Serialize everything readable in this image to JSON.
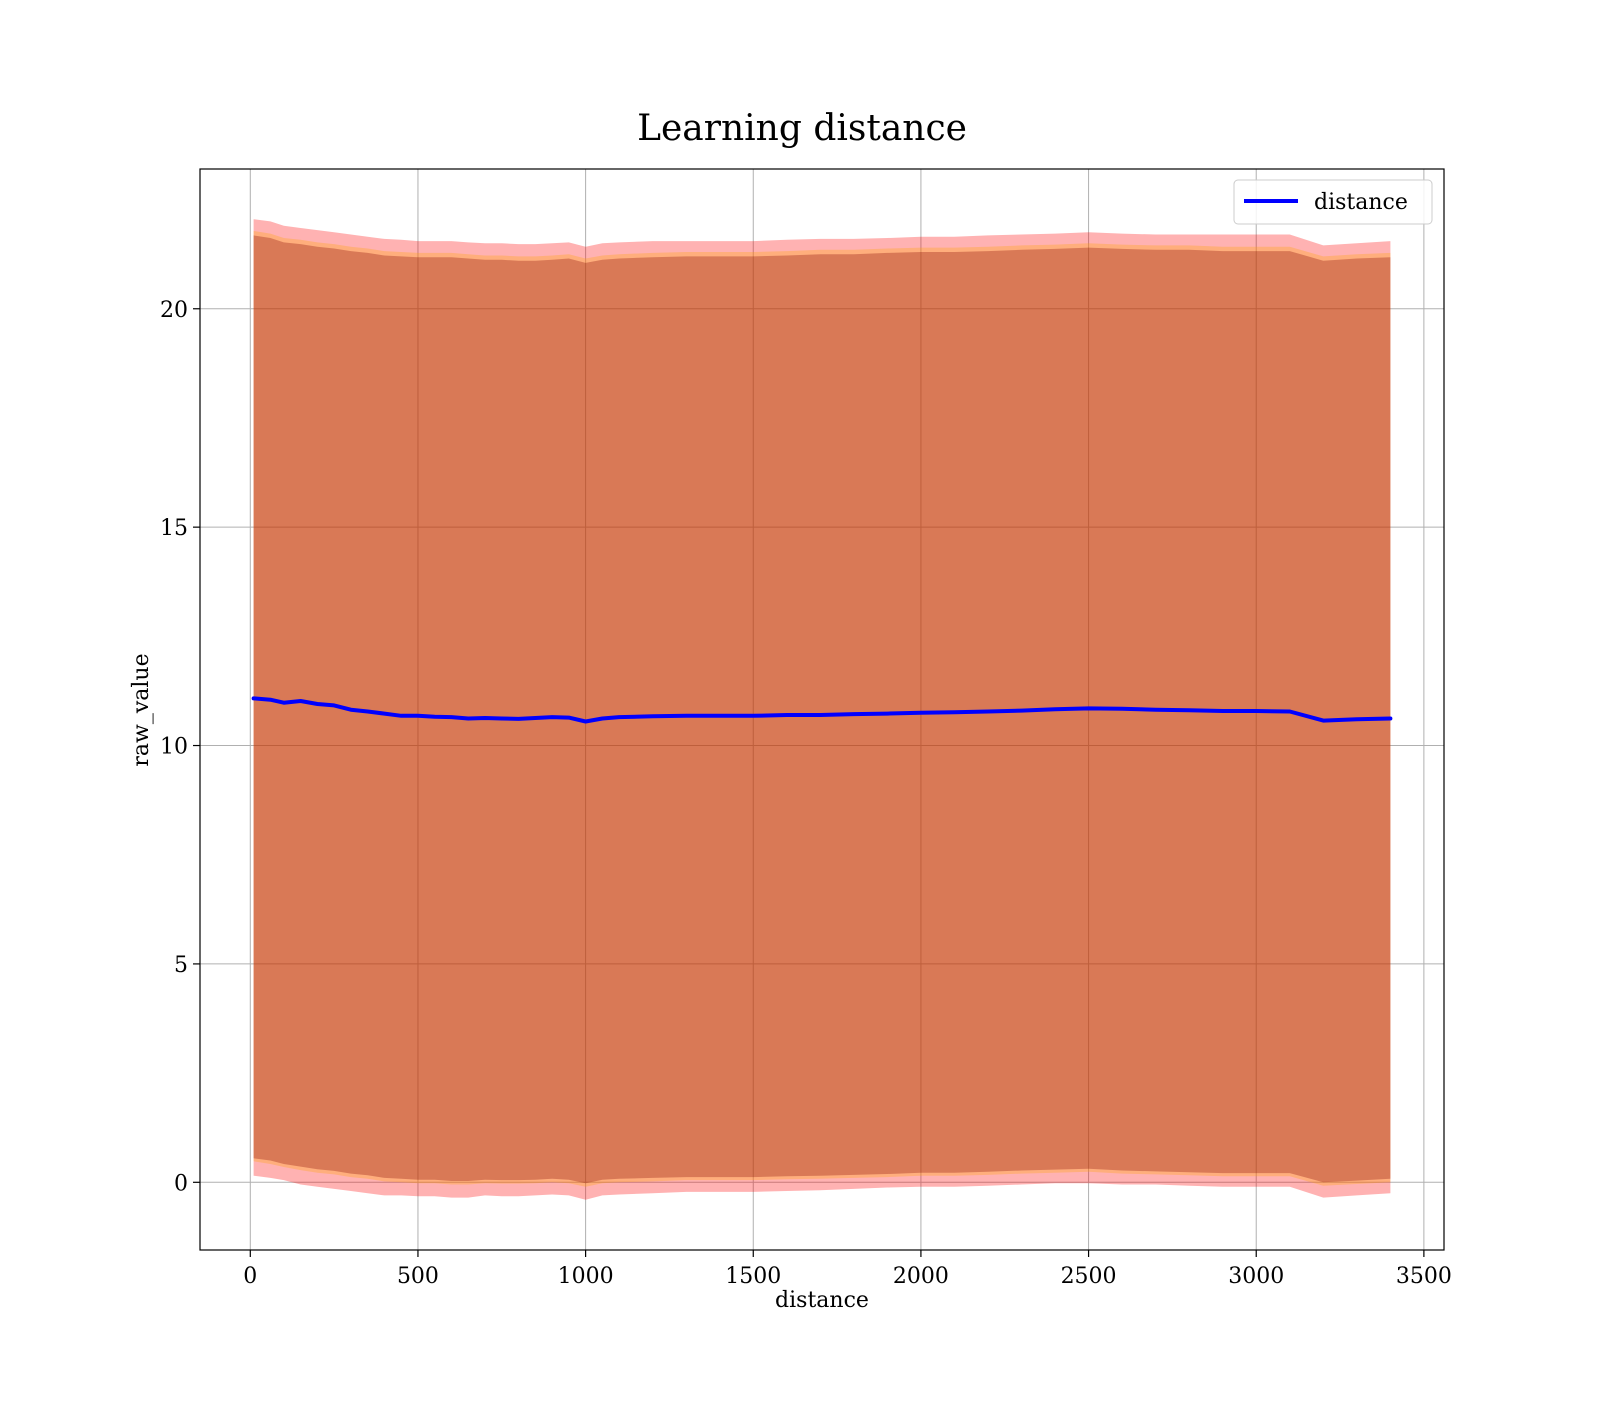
{
  "chart_data": {
    "type": "line",
    "title": "Learning distance",
    "xlabel": "distance",
    "ylabel": "raw_value",
    "xlim": [
      -150,
      3560
    ],
    "ylim": [
      -1.55,
      23.2
    ],
    "x_ticks": [
      0,
      500,
      1000,
      1500,
      2000,
      2500,
      3000,
      3500
    ],
    "y_ticks": [
      0,
      5,
      10,
      15,
      20
    ],
    "grid": true,
    "legend_position": "top-right",
    "series": [
      {
        "name": "distance",
        "color": "#0000ff",
        "x": [
          10,
          60,
          100,
          150,
          200,
          250,
          300,
          350,
          400,
          450,
          500,
          550,
          600,
          650,
          700,
          750,
          800,
          850,
          900,
          950,
          1000,
          1050,
          1100,
          1200,
          1300,
          1400,
          1500,
          1600,
          1700,
          1800,
          1900,
          2000,
          2100,
          2200,
          2300,
          2400,
          2500,
          2600,
          2700,
          2800,
          2900,
          3000,
          3100,
          3200,
          3300,
          3400
        ],
        "y": [
          11.08,
          11.05,
          10.98,
          11.02,
          10.95,
          10.92,
          10.82,
          10.78,
          10.73,
          10.68,
          10.68,
          10.66,
          10.65,
          10.62,
          10.63,
          10.62,
          10.61,
          10.63,
          10.65,
          10.64,
          10.55,
          10.62,
          10.65,
          10.67,
          10.68,
          10.68,
          10.68,
          10.7,
          10.7,
          10.72,
          10.73,
          10.75,
          10.76,
          10.78,
          10.8,
          10.83,
          10.85,
          10.84,
          10.82,
          10.81,
          10.79,
          10.79,
          10.78,
          10.57,
          10.6,
          10.62
        ]
      }
    ],
    "bands": [
      {
        "color": "#ff0000",
        "opacity": 0.3,
        "x": [
          10,
          60,
          100,
          150,
          200,
          250,
          300,
          350,
          400,
          450,
          500,
          550,
          600,
          650,
          700,
          750,
          800,
          850,
          900,
          950,
          1000,
          1050,
          1100,
          1200,
          1300,
          1400,
          1500,
          1600,
          1700,
          1800,
          1900,
          2000,
          2100,
          2200,
          2300,
          2400,
          2500,
          2600,
          2700,
          2800,
          2900,
          3000,
          3100,
          3200,
          3300,
          3400
        ],
        "upper": [
          22.05,
          22.0,
          21.9,
          21.85,
          21.8,
          21.75,
          21.7,
          21.65,
          21.6,
          21.58,
          21.55,
          21.55,
          21.55,
          21.52,
          21.5,
          21.5,
          21.48,
          21.48,
          21.5,
          21.52,
          21.42,
          21.5,
          21.52,
          21.55,
          21.55,
          21.55,
          21.55,
          21.58,
          21.6,
          21.6,
          21.62,
          21.65,
          21.65,
          21.68,
          21.7,
          21.72,
          21.75,
          21.72,
          21.7,
          21.7,
          21.7,
          21.7,
          21.7,
          21.45,
          21.5,
          21.55
        ],
        "lower": [
          0.15,
          0.1,
          0.05,
          -0.05,
          -0.1,
          -0.15,
          -0.2,
          -0.25,
          -0.3,
          -0.3,
          -0.32,
          -0.32,
          -0.35,
          -0.35,
          -0.3,
          -0.32,
          -0.32,
          -0.3,
          -0.28,
          -0.3,
          -0.4,
          -0.3,
          -0.28,
          -0.25,
          -0.22,
          -0.22,
          -0.22,
          -0.2,
          -0.18,
          -0.15,
          -0.12,
          -0.1,
          -0.1,
          -0.08,
          -0.05,
          -0.02,
          -0.02,
          -0.05,
          -0.05,
          -0.08,
          -0.1,
          -0.1,
          -0.1,
          -0.35,
          -0.3,
          -0.25
        ]
      },
      {
        "color": "#ffa500",
        "opacity": 0.3,
        "x": [
          10,
          60,
          100,
          150,
          200,
          250,
          300,
          350,
          400,
          450,
          500,
          550,
          600,
          650,
          700,
          750,
          800,
          850,
          900,
          950,
          1000,
          1050,
          1100,
          1200,
          1300,
          1400,
          1500,
          1600,
          1700,
          1800,
          1900,
          2000,
          2100,
          2200,
          2300,
          2400,
          2500,
          2600,
          2700,
          2800,
          2900,
          3000,
          3100,
          3200,
          3300,
          3400
        ],
        "upper": [
          21.78,
          21.72,
          21.62,
          21.58,
          21.52,
          21.48,
          21.42,
          21.38,
          21.32,
          21.3,
          21.28,
          21.28,
          21.28,
          21.25,
          21.22,
          21.22,
          21.2,
          21.2,
          21.22,
          21.25,
          21.15,
          21.22,
          21.25,
          21.28,
          21.3,
          21.3,
          21.3,
          21.32,
          21.35,
          21.35,
          21.38,
          21.4,
          21.4,
          21.42,
          21.45,
          21.47,
          21.5,
          21.47,
          21.45,
          21.45,
          21.42,
          21.42,
          21.42,
          21.2,
          21.25,
          21.28
        ],
        "lower": [
          0.48,
          0.42,
          0.35,
          0.28,
          0.22,
          0.18,
          0.12,
          0.08,
          0.02,
          0.0,
          -0.02,
          -0.02,
          -0.05,
          -0.05,
          -0.02,
          -0.03,
          -0.03,
          -0.02,
          0.0,
          -0.02,
          -0.1,
          -0.02,
          0.0,
          0.02,
          0.05,
          0.05,
          0.05,
          0.07,
          0.08,
          0.1,
          0.12,
          0.15,
          0.15,
          0.17,
          0.2,
          0.22,
          0.24,
          0.2,
          0.18,
          0.16,
          0.14,
          0.14,
          0.14,
          -0.08,
          -0.04,
          0.0
        ]
      },
      {
        "color": "#800000",
        "opacity": 0.3,
        "x": [
          10,
          60,
          100,
          150,
          200,
          250,
          300,
          350,
          400,
          450,
          500,
          550,
          600,
          650,
          700,
          750,
          800,
          850,
          900,
          950,
          1000,
          1050,
          1100,
          1200,
          1300,
          1400,
          1500,
          1600,
          1700,
          1800,
          1900,
          2000,
          2100,
          2200,
          2300,
          2400,
          2500,
          2600,
          2700,
          2800,
          2900,
          3000,
          3100,
          3200,
          3300,
          3400
        ],
        "upper": [
          21.68,
          21.62,
          21.52,
          21.48,
          21.42,
          21.38,
          21.32,
          21.28,
          21.22,
          21.2,
          21.18,
          21.18,
          21.18,
          21.15,
          21.12,
          21.12,
          21.1,
          21.1,
          21.12,
          21.15,
          21.05,
          21.12,
          21.15,
          21.18,
          21.2,
          21.2,
          21.2,
          21.22,
          21.25,
          21.25,
          21.28,
          21.3,
          21.3,
          21.32,
          21.35,
          21.37,
          21.4,
          21.37,
          21.35,
          21.35,
          21.32,
          21.32,
          21.32,
          21.1,
          21.15,
          21.18
        ],
        "lower": [
          0.55,
          0.5,
          0.42,
          0.36,
          0.3,
          0.26,
          0.2,
          0.16,
          0.1,
          0.08,
          0.06,
          0.06,
          0.03,
          0.03,
          0.06,
          0.05,
          0.05,
          0.06,
          0.08,
          0.06,
          -0.02,
          0.06,
          0.08,
          0.1,
          0.12,
          0.12,
          0.12,
          0.14,
          0.15,
          0.17,
          0.19,
          0.22,
          0.22,
          0.24,
          0.27,
          0.29,
          0.31,
          0.27,
          0.25,
          0.23,
          0.21,
          0.21,
          0.21,
          0.0,
          0.04,
          0.08
        ]
      }
    ]
  }
}
